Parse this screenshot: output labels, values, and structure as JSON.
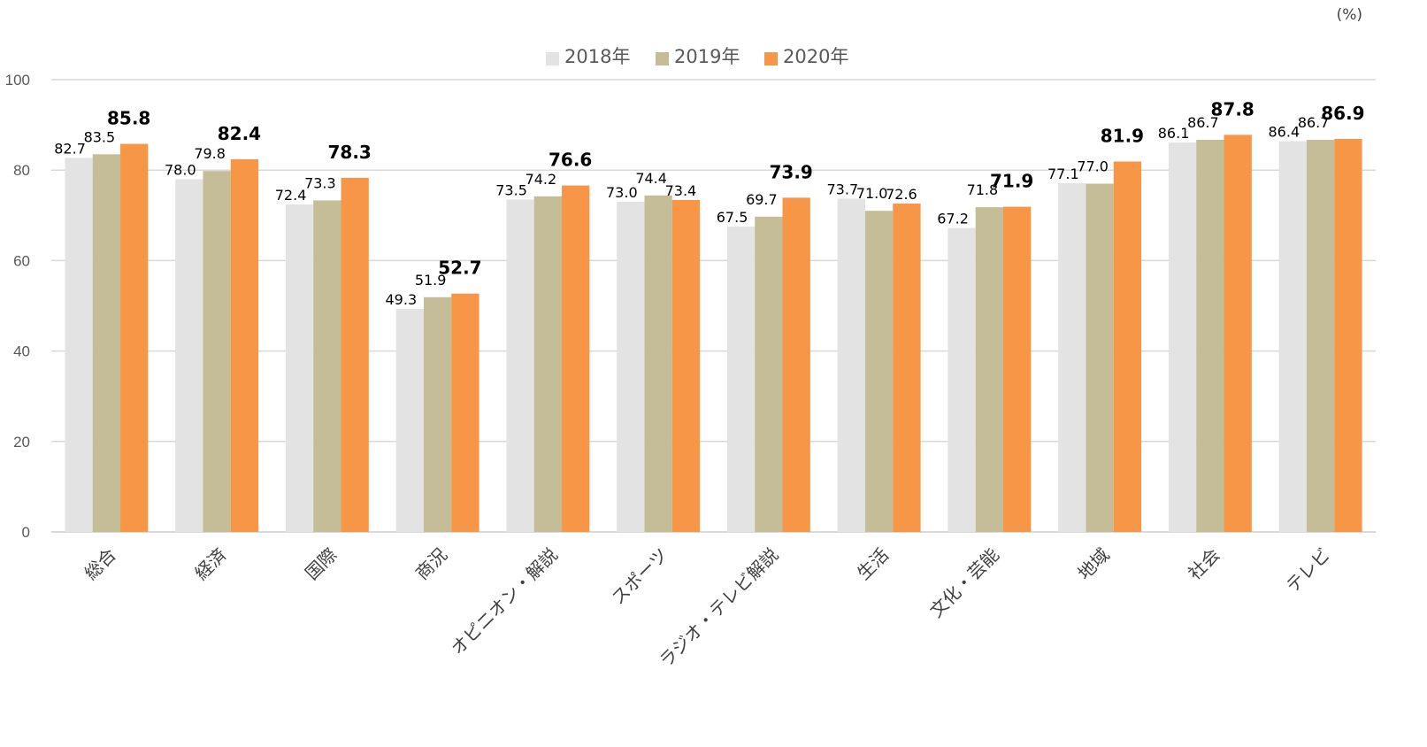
{
  "chart_data": {
    "type": "bar",
    "title": "",
    "unit_label": "(%)",
    "xlabel": "",
    "ylabel": "",
    "ylim": [
      0,
      100
    ],
    "yticks": [
      0,
      20,
      40,
      60,
      80,
      100
    ],
    "grid": true,
    "legend_position": "top-center",
    "categories": [
      "総合",
      "経済",
      "国際",
      "商況",
      "オピニオン・解説",
      "スポーツ",
      "ラジオ・テレビ解説",
      "生活",
      "文化・芸能",
      "地域",
      "社会",
      "テレビ"
    ],
    "series": [
      {
        "name": "2018年",
        "color": "#e3e3e3",
        "bold_labels": false,
        "values": [
          82.7,
          78.0,
          72.4,
          49.3,
          73.5,
          73.0,
          67.5,
          73.7,
          67.2,
          77.1,
          86.1,
          86.4
        ]
      },
      {
        "name": "2019年",
        "color": "#c4bd97",
        "bold_labels": false,
        "values": [
          83.5,
          79.8,
          73.3,
          51.9,
          74.2,
          74.4,
          69.7,
          71.0,
          71.8,
          77.0,
          86.7,
          86.7
        ]
      },
      {
        "name": "2020年",
        "color": "#f79646",
        "bold_labels_for": [
          0,
          1,
          2,
          3,
          4,
          6,
          8,
          9,
          10,
          11
        ],
        "values": [
          85.8,
          82.4,
          78.3,
          52.7,
          76.6,
          73.4,
          73.9,
          72.6,
          71.9,
          81.9,
          87.8,
          86.9
        ]
      }
    ],
    "colors": {
      "grid": "#d9d9d9",
      "axis": "#d9d9d9",
      "tick_text": "#595959",
      "category_text": "#404040"
    }
  }
}
